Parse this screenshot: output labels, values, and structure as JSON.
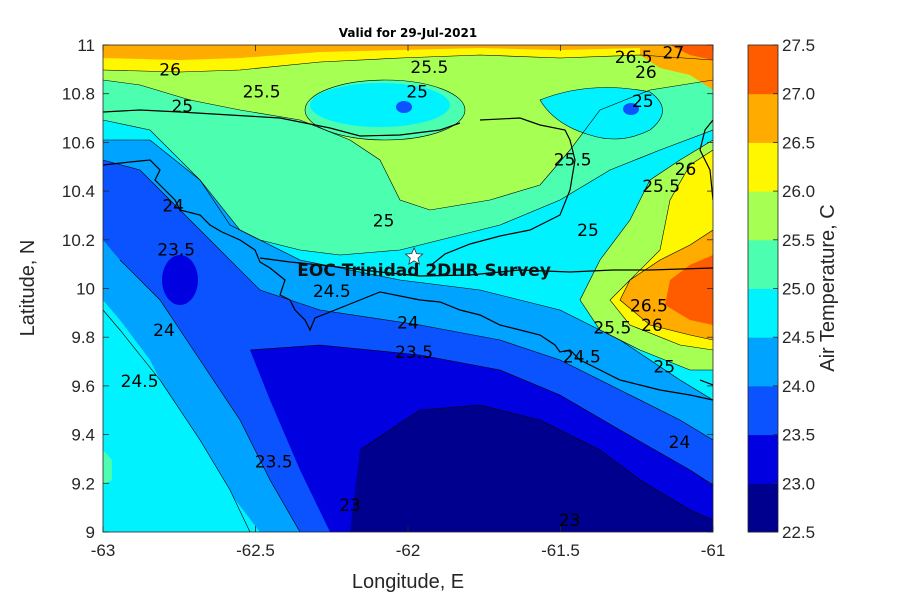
{
  "chart_data": {
    "type": "contour",
    "title": "Valid for 29-Jul-2021",
    "xlabel": "Longitude, E",
    "ylabel": "Latitude, N",
    "xlim": [
      -63,
      -61
    ],
    "ylim": [
      9,
      11
    ],
    "xticks": [
      "-63",
      "-62.5",
      "-62",
      "-61.5",
      "-61"
    ],
    "yticks": [
      "9",
      "9.2",
      "9.4",
      "9.6",
      "9.8",
      "10",
      "10.2",
      "10.4",
      "10.6",
      "10.8",
      "11"
    ],
    "colorbar": {
      "label": "Air Temperature, C",
      "range": [
        22.5,
        27.5
      ],
      "ticks": [
        "22.5",
        "23.0",
        "23.5",
        "24.0",
        "24.5",
        "25.0",
        "25.5",
        "26.0",
        "26.5",
        "27.0",
        "27.5"
      ],
      "colors": [
        "#00008f",
        "#0000e0",
        "#0a53ff",
        "#00a3ff",
        "#00f2ff",
        "#4cffb0",
        "#a6ff53",
        "#fff700",
        "#ffab00",
        "#ff5c00"
      ]
    },
    "contour_labels": [
      {
        "text": "26",
        "lon": -62.78,
        "lat": 10.9
      },
      {
        "text": "25.5",
        "lon": -62.48,
        "lat": 10.81
      },
      {
        "text": "25",
        "lon": -62.74,
        "lat": 10.75
      },
      {
        "text": "25.5",
        "lon": -61.93,
        "lat": 10.91
      },
      {
        "text": "25",
        "lon": -61.97,
        "lat": 10.81
      },
      {
        "text": "26.5",
        "lon": -61.26,
        "lat": 10.95
      },
      {
        "text": "27",
        "lon": -61.13,
        "lat": 10.97
      },
      {
        "text": "26",
        "lon": -61.22,
        "lat": 10.89
      },
      {
        "text": "25",
        "lon": -61.23,
        "lat": 10.77
      },
      {
        "text": "25.5",
        "lon": -61.46,
        "lat": 10.53
      },
      {
        "text": "26",
        "lon": -61.09,
        "lat": 10.49
      },
      {
        "text": "25.5",
        "lon": -61.17,
        "lat": 10.42
      },
      {
        "text": "25",
        "lon": -62.08,
        "lat": 10.28
      },
      {
        "text": "25",
        "lon": -61.41,
        "lat": 10.24
      },
      {
        "text": "24",
        "lon": -62.77,
        "lat": 10.34
      },
      {
        "text": "23.5",
        "lon": -62.76,
        "lat": 10.16
      },
      {
        "text": "24.5",
        "lon": -62.25,
        "lat": 9.99
      },
      {
        "text": "24",
        "lon": -62.0,
        "lat": 9.86
      },
      {
        "text": "23.5",
        "lon": -61.98,
        "lat": 9.74
      },
      {
        "text": "26.5",
        "lon": -61.21,
        "lat": 9.93
      },
      {
        "text": "26",
        "lon": -61.2,
        "lat": 9.85
      },
      {
        "text": "25.5",
        "lon": -61.33,
        "lat": 9.84
      },
      {
        "text": "24.5",
        "lon": -61.43,
        "lat": 9.72
      },
      {
        "text": "25",
        "lon": -61.16,
        "lat": 9.68
      },
      {
        "text": "24",
        "lon": -62.8,
        "lat": 9.83
      },
      {
        "text": "24.5",
        "lon": -62.88,
        "lat": 9.62
      },
      {
        "text": "23.5",
        "lon": -62.44,
        "lat": 9.29
      },
      {
        "text": "23",
        "lon": -62.19,
        "lat": 9.11
      },
      {
        "text": "24",
        "lon": -61.11,
        "lat": 9.37
      },
      {
        "text": "23",
        "lon": -61.47,
        "lat": 9.05
      }
    ],
    "annotations": [
      {
        "text": "EOC Trinidad 2DHR Survey",
        "lon": -61.98,
        "lat": 10.13,
        "marker": "star"
      }
    ],
    "grid": false
  }
}
